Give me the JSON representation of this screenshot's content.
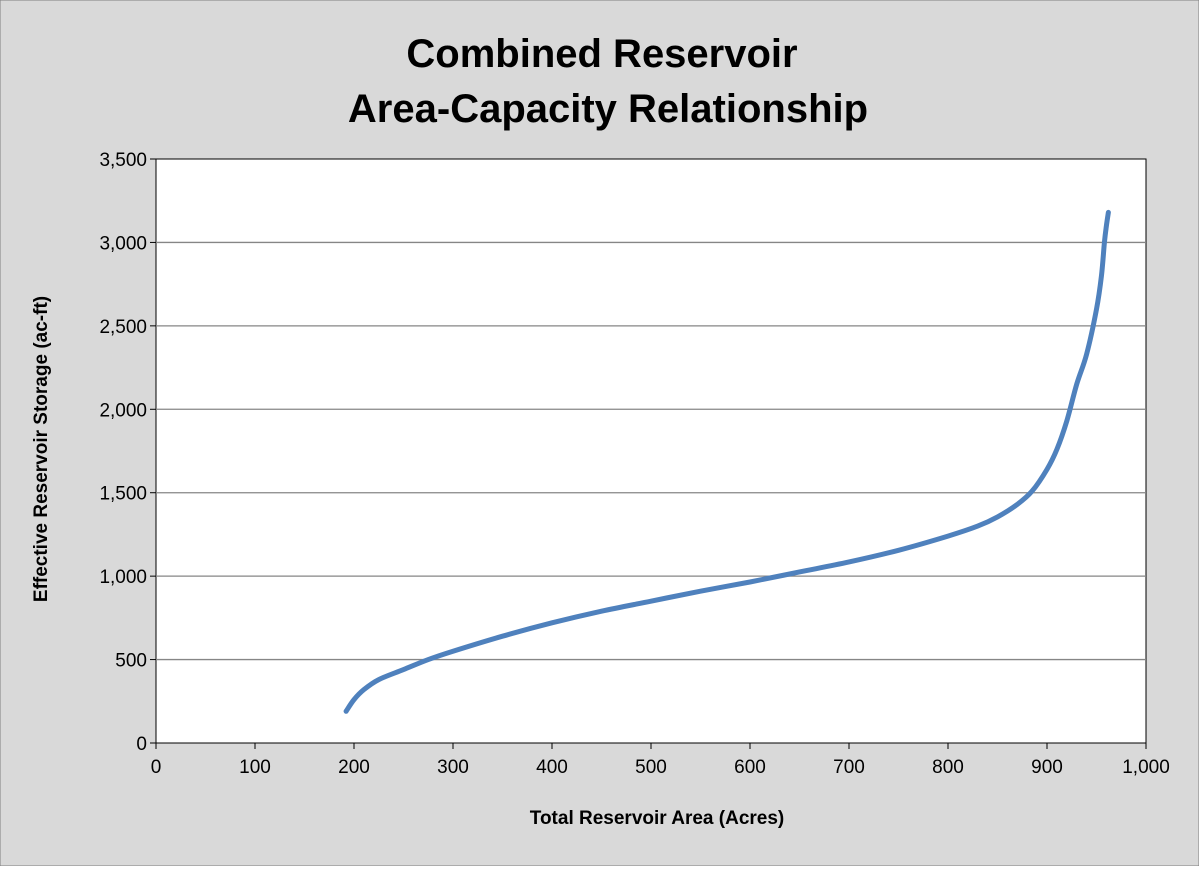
{
  "chart_data": {
    "type": "line",
    "title_lines": [
      "Combined Reservoir",
      "Area-Capacity   Relationship"
    ],
    "xlabel": "Total Reservoir Area (Acres)",
    "ylabel": "Effective Reservoir Storage (ac-ft)",
    "xlim": [
      0,
      1000
    ],
    "ylim": [
      0,
      3500
    ],
    "x_ticks": [
      0,
      100,
      200,
      300,
      400,
      500,
      600,
      700,
      800,
      900,
      1000
    ],
    "x_tick_labels": [
      "0",
      "100",
      "200",
      "300",
      "400",
      "500",
      "600",
      "700",
      "800",
      "900",
      "1,000"
    ],
    "y_ticks": [
      0,
      500,
      1000,
      1500,
      2000,
      2500,
      3000,
      3500
    ],
    "y_tick_labels": [
      "0",
      "500",
      "1,000",
      "1,500",
      "2,000",
      "2,500",
      "3,000",
      "3,500"
    ],
    "grid": "horizontal",
    "legend": "none",
    "series": [
      {
        "color": "#4F81BD",
        "x": [
          192,
          200,
          210,
          225,
          250,
          275,
          300,
          350,
          400,
          450,
          500,
          550,
          600,
          650,
          700,
          750,
          800,
          830,
          850,
          870,
          885,
          900,
          910,
          920,
          930,
          940,
          950,
          955,
          958,
          960,
          962
        ],
        "y": [
          190,
          260,
          320,
          380,
          440,
          500,
          550,
          640,
          720,
          790,
          850,
          910,
          965,
          1025,
          1085,
          1155,
          1240,
          1300,
          1355,
          1430,
          1510,
          1640,
          1760,
          1930,
          2150,
          2330,
          2600,
          2800,
          3000,
          3100,
          3180
        ]
      }
    ],
    "colors": {
      "background": "#D9D9D9",
      "plot_area": "#FFFFFF",
      "gridline": "#868686"
    }
  }
}
